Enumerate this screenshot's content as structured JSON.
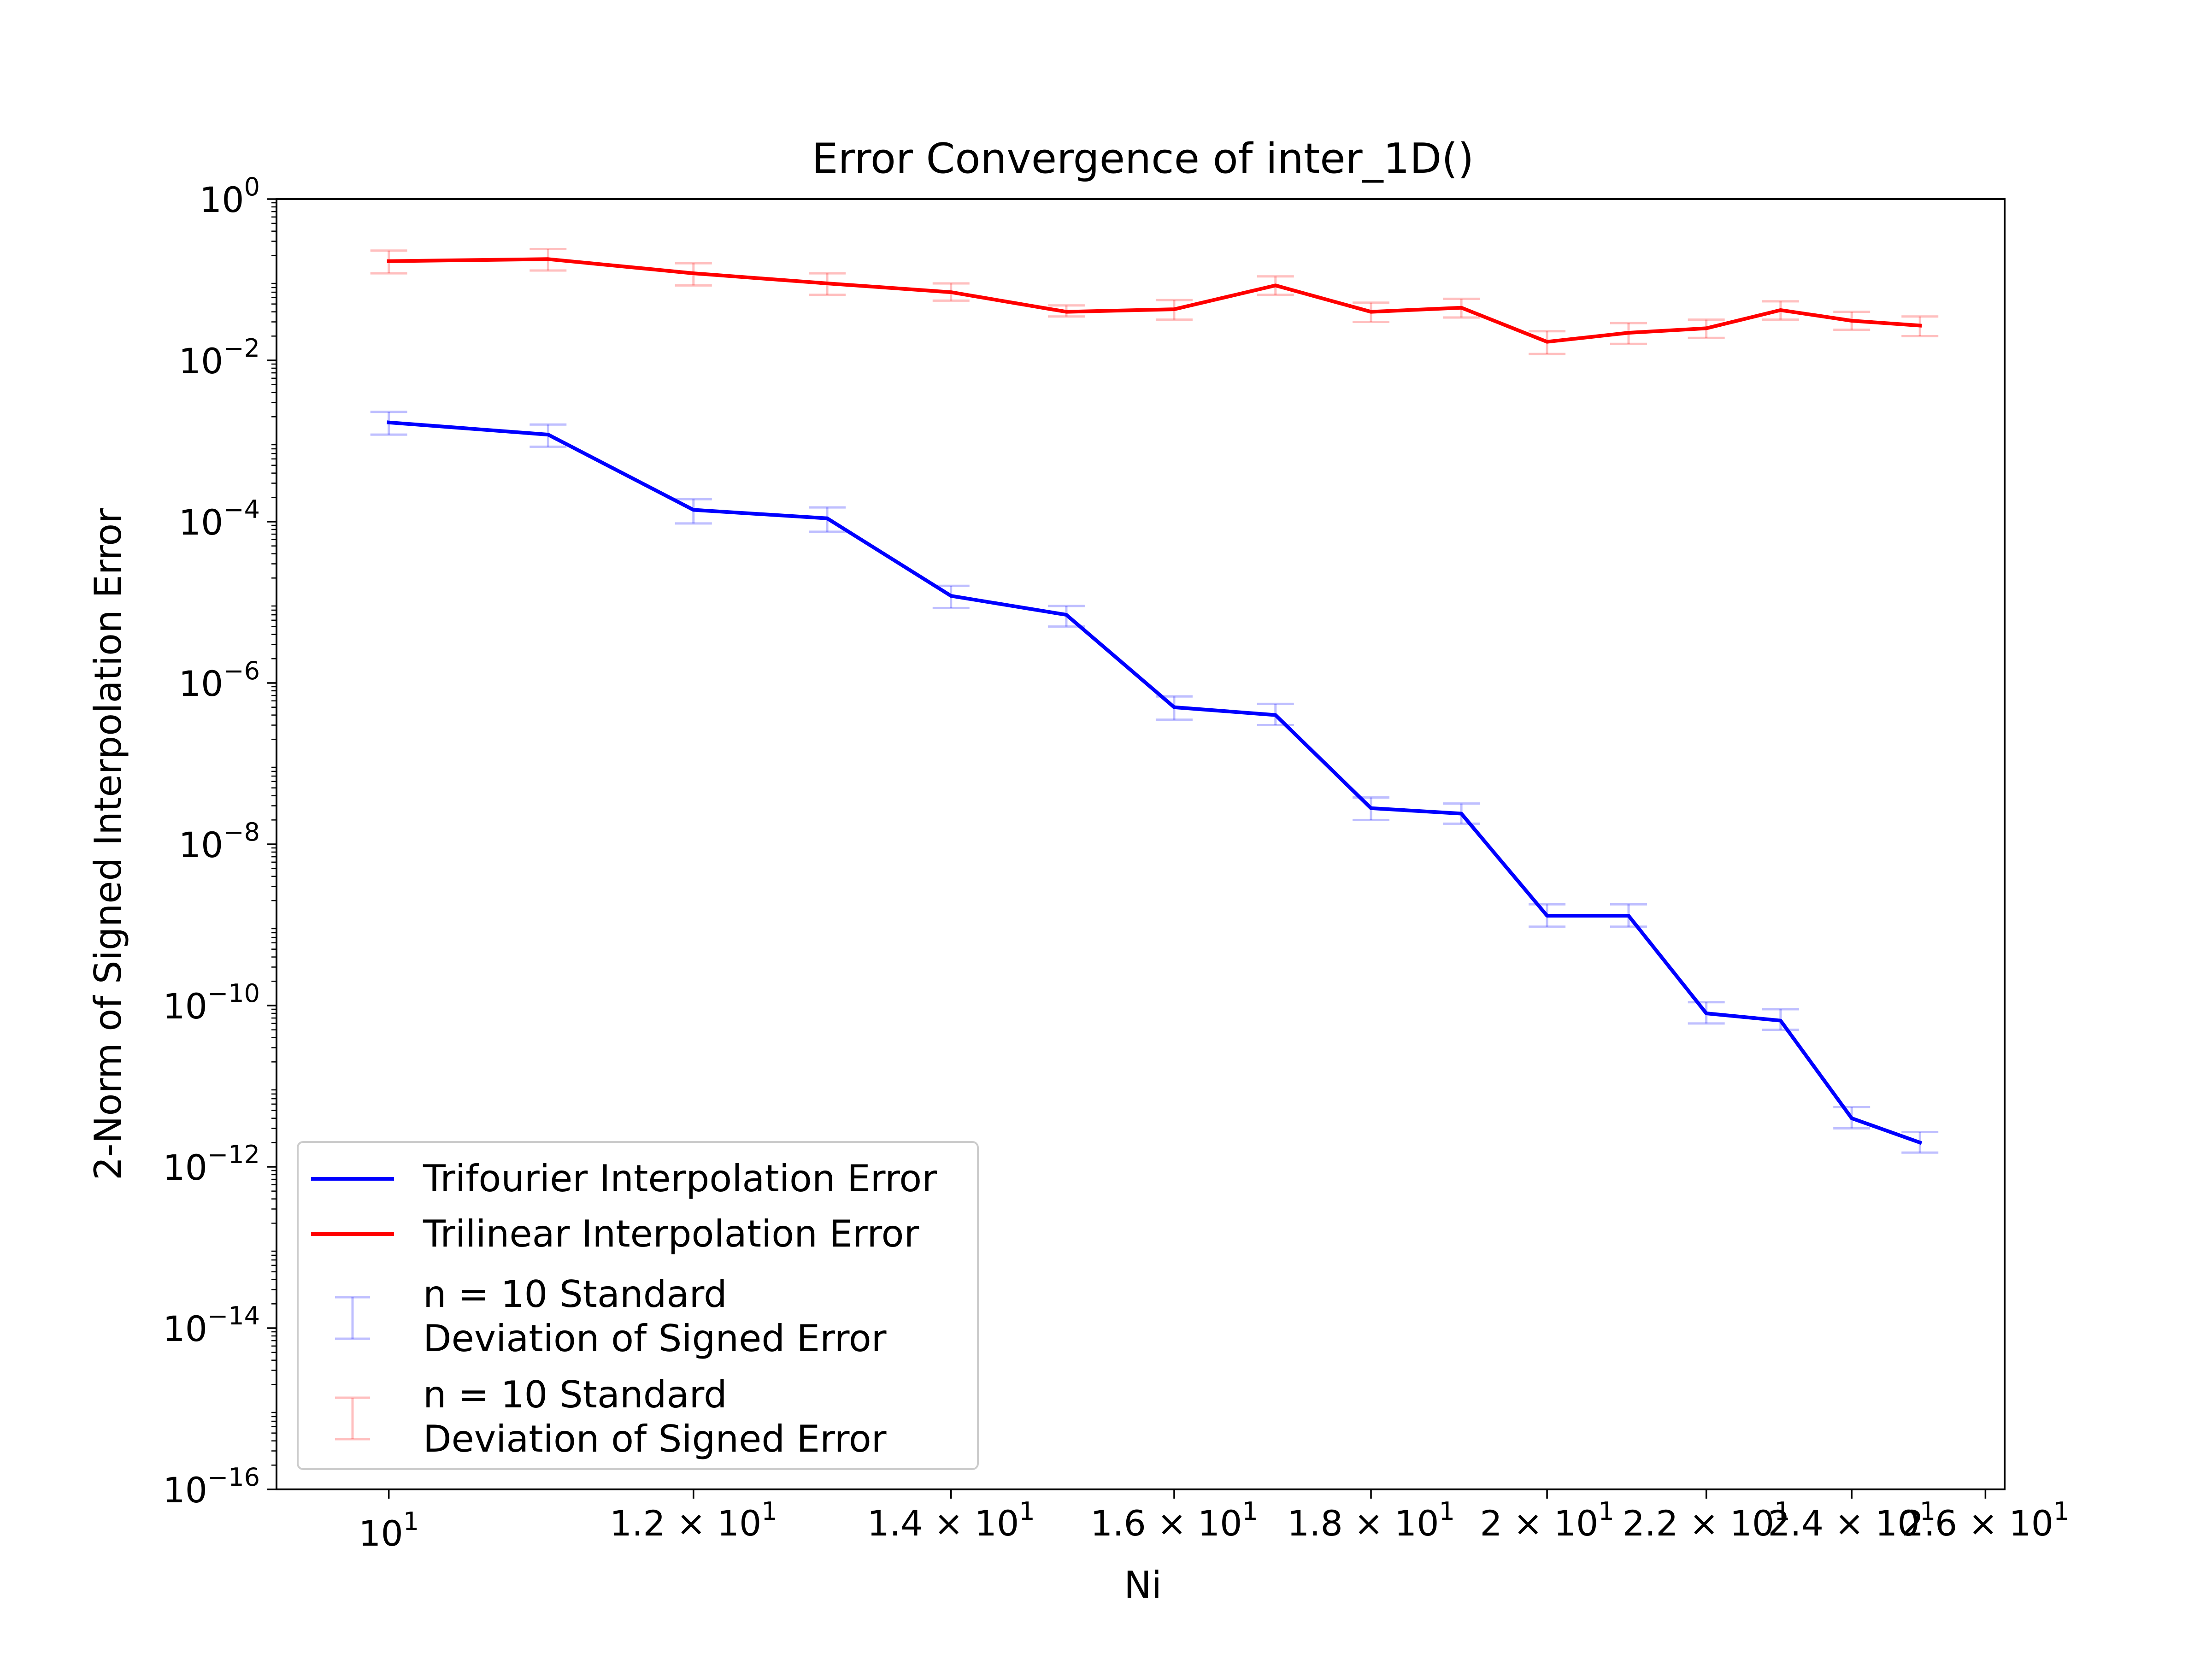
{
  "chart_data": {
    "type": "line",
    "title": "Error Convergence of inter_1D()",
    "xlabel": "Ni",
    "ylabel": "2-Norm of Signed Interpolation Error",
    "xscale": "log",
    "yscale": "log",
    "xlim": [
      9.35,
      26.3
    ],
    "ylim": [
      1e-16,
      1
    ],
    "x": [
      10,
      11,
      12,
      13,
      14,
      15,
      16,
      17,
      18,
      19,
      20,
      21,
      22,
      23,
      24,
      25
    ],
    "x_ticks": [
      {
        "value": 10,
        "mantissa": "",
        "exp": "1"
      },
      {
        "value": 12,
        "mantissa": "1.2",
        "exp": "1"
      },
      {
        "value": 14,
        "mantissa": "1.4",
        "exp": "1"
      },
      {
        "value": 16,
        "mantissa": "1.6",
        "exp": "1"
      },
      {
        "value": 18,
        "mantissa": "1.8",
        "exp": "1"
      },
      {
        "value": 20,
        "mantissa": "2",
        "exp": "1"
      },
      {
        "value": 22,
        "mantissa": "2.2",
        "exp": "1"
      },
      {
        "value": 24,
        "mantissa": "2.4",
        "exp": "1"
      },
      {
        "value": 26,
        "mantissa": "2.6",
        "exp": "1"
      }
    ],
    "y_ticks": [
      {
        "value": 1,
        "exp": "0"
      },
      {
        "value": 0.01,
        "exp": "−2"
      },
      {
        "value": 0.0001,
        "exp": "−4"
      },
      {
        "value": 1e-06,
        "exp": "−6"
      },
      {
        "value": 1e-08,
        "exp": "−8"
      },
      {
        "value": 1e-10,
        "exp": "−10"
      },
      {
        "value": 1e-12,
        "exp": "−12"
      },
      {
        "value": 1e-14,
        "exp": "−14"
      },
      {
        "value": 1e-16,
        "exp": "−16"
      }
    ],
    "series": [
      {
        "name": "Trifourier Interpolation Error",
        "color": "#0000ff",
        "values": [
          0.0017,
          0.0012,
          0.00014,
          0.00011,
          1.2e-05,
          7e-06,
          5e-07,
          4e-07,
          2.8e-08,
          2.4e-08,
          1.3e-09,
          1.3e-09,
          8e-11,
          6.5e-11,
          4e-12,
          2e-12
        ],
        "err_low": [
          0.0012,
          0.00085,
          9.5e-05,
          7.5e-05,
          8.5e-06,
          5e-06,
          3.5e-07,
          3e-07,
          2e-08,
          1.8e-08,
          9.5e-10,
          9.5e-10,
          6e-11,
          5e-11,
          3e-12,
          1.5e-12
        ],
        "err_high": [
          0.0023,
          0.0016,
          0.00019,
          0.00015,
          1.6e-05,
          9e-06,
          6.8e-07,
          5.5e-07,
          3.8e-08,
          3.2e-08,
          1.8e-09,
          1.8e-09,
          1.1e-10,
          9e-11,
          5.5e-12,
          2.7e-12
        ]
      },
      {
        "name": "Trilinear Interpolation Error",
        "color": "#ff0000",
        "values": [
          0.17,
          0.18,
          0.12,
          0.09,
          0.07,
          0.04,
          0.043,
          0.085,
          0.04,
          0.045,
          0.017,
          0.022,
          0.025,
          0.042,
          0.031,
          0.027
        ],
        "err_low": [
          0.12,
          0.13,
          0.085,
          0.065,
          0.055,
          0.035,
          0.032,
          0.065,
          0.03,
          0.034,
          0.012,
          0.016,
          0.019,
          0.032,
          0.024,
          0.02
        ],
        "err_high": [
          0.23,
          0.24,
          0.16,
          0.12,
          0.09,
          0.048,
          0.056,
          0.11,
          0.052,
          0.058,
          0.023,
          0.029,
          0.032,
          0.054,
          0.04,
          0.035
        ]
      }
    ],
    "errorbar_legend": [
      {
        "line1": "n = 10 Standard",
        "line2": "Deviation of Signed Error",
        "color": "#0000ff"
      },
      {
        "line1": "n = 10 Standard",
        "line2": "Deviation of Signed Error",
        "color": "#ff0000"
      }
    ],
    "legend_position": "lower-left",
    "grid": false
  }
}
